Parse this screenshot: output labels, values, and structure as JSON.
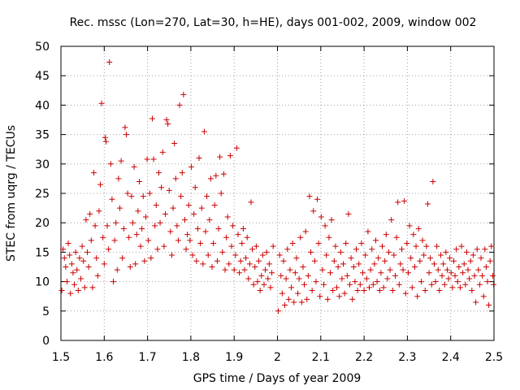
{
  "chart_data": {
    "type": "scatter",
    "title": "Rec. mssc (Lon=270, Lat=30, h=HE), days 001-002, 2009, window 002",
    "xlabel": "GPS time / Days of year 2009",
    "ylabel": "STEC from uqrg / TECUs",
    "xlim": [
      1.5,
      2.5
    ],
    "ylim": [
      0,
      50
    ],
    "xticks": [
      "1.5",
      "1.6",
      "1.7",
      "1.8",
      "1.9",
      "2",
      "2.1",
      "2.2",
      "2.3",
      "2.4",
      "2.5"
    ],
    "yticks": [
      "0",
      "5",
      "10",
      "15",
      "20",
      "25",
      "30",
      "35",
      "40",
      "45",
      "50"
    ],
    "grid": true,
    "marker": "plus",
    "color": "#cc0000",
    "points": [
      [
        1.502,
        8.5
      ],
      [
        1.505,
        15.5
      ],
      [
        1.508,
        14.0
      ],
      [
        1.511,
        12.5
      ],
      [
        1.514,
        10.0
      ],
      [
        1.517,
        16.5
      ],
      [
        1.52,
        14.5
      ],
      [
        1.522,
        8.0
      ],
      [
        1.525,
        13.0
      ],
      [
        1.528,
        11.5
      ],
      [
        1.531,
        9.5
      ],
      [
        1.534,
        15.0
      ],
      [
        1.537,
        12.0
      ],
      [
        1.54,
        8.5
      ],
      [
        1.543,
        14.0
      ],
      [
        1.546,
        10.5
      ],
      [
        1.549,
        16.0
      ],
      [
        1.552,
        13.5
      ],
      [
        1.555,
        9.0
      ],
      [
        1.558,
        20.5
      ],
      [
        1.561,
        15.0
      ],
      [
        1.564,
        12.5
      ],
      [
        1.567,
        21.5
      ],
      [
        1.57,
        17.0
      ],
      [
        1.573,
        9.0
      ],
      [
        1.576,
        28.5
      ],
      [
        1.579,
        19.5
      ],
      [
        1.582,
        14.0
      ],
      [
        1.585,
        11.0
      ],
      [
        1.588,
        22.0
      ],
      [
        1.591,
        26.5
      ],
      [
        1.594,
        40.3
      ],
      [
        1.597,
        17.5
      ],
      [
        1.6,
        13.0
      ],
      [
        1.602,
        34.5
      ],
      [
        1.604,
        33.8
      ],
      [
        1.607,
        19.5
      ],
      [
        1.61,
        15.5
      ],
      [
        1.612,
        47.3
      ],
      [
        1.615,
        30.0
      ],
      [
        1.618,
        24.0
      ],
      [
        1.621,
        10.0
      ],
      [
        1.624,
        17.0
      ],
      [
        1.627,
        20.0
      ],
      [
        1.63,
        12.0
      ],
      [
        1.633,
        27.5
      ],
      [
        1.636,
        22.5
      ],
      [
        1.639,
        30.5
      ],
      [
        1.642,
        14.0
      ],
      [
        1.645,
        19.0
      ],
      [
        1.648,
        36.2
      ],
      [
        1.651,
        35.0
      ],
      [
        1.654,
        25.0
      ],
      [
        1.657,
        17.5
      ],
      [
        1.66,
        12.5
      ],
      [
        1.663,
        24.5
      ],
      [
        1.666,
        20.0
      ],
      [
        1.669,
        29.5
      ],
      [
        1.672,
        13.0
      ],
      [
        1.675,
        18.0
      ],
      [
        1.678,
        22.0
      ],
      [
        1.681,
        27.0
      ],
      [
        1.684,
        16.0
      ],
      [
        1.687,
        19.0
      ],
      [
        1.69,
        24.5
      ],
      [
        1.693,
        13.5
      ],
      [
        1.696,
        21.0
      ],
      [
        1.699,
        30.8
      ],
      [
        1.702,
        17.0
      ],
      [
        1.705,
        25.0
      ],
      [
        1.708,
        14.0
      ],
      [
        1.711,
        37.7
      ],
      [
        1.714,
        30.8
      ],
      [
        1.717,
        19.5
      ],
      [
        1.72,
        23.0
      ],
      [
        1.723,
        15.5
      ],
      [
        1.726,
        28.5
      ],
      [
        1.729,
        20.0
      ],
      [
        1.732,
        26.0
      ],
      [
        1.735,
        32.0
      ],
      [
        1.738,
        16.0
      ],
      [
        1.741,
        21.5
      ],
      [
        1.744,
        37.5
      ],
      [
        1.747,
        36.8
      ],
      [
        1.75,
        25.5
      ],
      [
        1.753,
        18.5
      ],
      [
        1.756,
        14.5
      ],
      [
        1.759,
        22.5
      ],
      [
        1.762,
        33.5
      ],
      [
        1.765,
        27.5
      ],
      [
        1.768,
        19.5
      ],
      [
        1.771,
        17.0
      ],
      [
        1.774,
        40.0
      ],
      [
        1.777,
        24.5
      ],
      [
        1.78,
        28.5
      ],
      [
        1.783,
        41.8
      ],
      [
        1.786,
        20.5
      ],
      [
        1.789,
        15.5
      ],
      [
        1.792,
        18.0
      ],
      [
        1.795,
        23.0
      ],
      [
        1.798,
        17.0
      ],
      [
        1.801,
        29.5
      ],
      [
        1.804,
        14.5
      ],
      [
        1.807,
        21.5
      ],
      [
        1.81,
        26.0
      ],
      [
        1.813,
        13.5
      ],
      [
        1.816,
        19.0
      ],
      [
        1.819,
        31.0
      ],
      [
        1.822,
        16.5
      ],
      [
        1.825,
        22.5
      ],
      [
        1.828,
        13.0
      ],
      [
        1.831,
        35.5
      ],
      [
        1.834,
        18.5
      ],
      [
        1.837,
        24.5
      ],
      [
        1.84,
        14.5
      ],
      [
        1.843,
        20.5
      ],
      [
        1.846,
        27.5
      ],
      [
        1.849,
        12.5
      ],
      [
        1.852,
        16.5
      ],
      [
        1.855,
        23.0
      ],
      [
        1.858,
        28.0
      ],
      [
        1.861,
        13.5
      ],
      [
        1.864,
        19.0
      ],
      [
        1.867,
        31.2
      ],
      [
        1.87,
        25.0
      ],
      [
        1.873,
        15.0
      ],
      [
        1.876,
        28.3
      ],
      [
        1.879,
        12.0
      ],
      [
        1.882,
        17.5
      ],
      [
        1.885,
        21.0
      ],
      [
        1.888,
        13.0
      ],
      [
        1.891,
        31.4
      ],
      [
        1.894,
        16.0
      ],
      [
        1.897,
        19.5
      ],
      [
        1.9,
        12.0
      ],
      [
        1.903,
        14.5
      ],
      [
        1.906,
        32.7
      ],
      [
        1.909,
        18.0
      ],
      [
        1.912,
        11.5
      ],
      [
        1.915,
        13.5
      ],
      [
        1.918,
        16.5
      ],
      [
        1.921,
        19.0
      ],
      [
        1.924,
        12.0
      ],
      [
        1.927,
        14.0
      ],
      [
        1.93,
        17.5
      ],
      [
        1.933,
        10.5
      ],
      [
        1.936,
        13.0
      ],
      [
        1.939,
        23.5
      ],
      [
        1.942,
        15.5
      ],
      [
        1.945,
        9.5
      ],
      [
        1.948,
        12.5
      ],
      [
        1.951,
        16.0
      ],
      [
        1.954,
        10.0
      ],
      [
        1.957,
        13.5
      ],
      [
        1.96,
        8.5
      ],
      [
        1.963,
        11.0
      ],
      [
        1.966,
        14.5
      ],
      [
        1.969,
        9.5
      ],
      [
        1.972,
        12.0
      ],
      [
        1.975,
        15.0
      ],
      [
        1.978,
        10.5
      ],
      [
        1.981,
        13.0
      ],
      [
        1.984,
        9.0
      ],
      [
        1.987,
        11.5
      ],
      [
        1.99,
        16.0
      ],
      [
        2.002,
        5.0
      ],
      [
        2.005,
        14.5
      ],
      [
        2.008,
        11.0
      ],
      [
        2.011,
        8.0
      ],
      [
        2.014,
        13.5
      ],
      [
        2.017,
        6.0
      ],
      [
        2.02,
        10.5
      ],
      [
        2.023,
        15.5
      ],
      [
        2.026,
        7.0
      ],
      [
        2.029,
        12.0
      ],
      [
        2.032,
        9.0
      ],
      [
        2.035,
        16.5
      ],
      [
        2.038,
        6.5
      ],
      [
        2.041,
        11.5
      ],
      [
        2.044,
        14.0
      ],
      [
        2.047,
        8.0
      ],
      [
        2.05,
        10.5
      ],
      [
        2.053,
        17.5
      ],
      [
        2.056,
        6.5
      ],
      [
        2.059,
        12.5
      ],
      [
        2.062,
        9.5
      ],
      [
        2.065,
        18.5
      ],
      [
        2.068,
        7.0
      ],
      [
        2.071,
        11.0
      ],
      [
        2.074,
        24.5
      ],
      [
        2.077,
        15.0
      ],
      [
        2.08,
        8.5
      ],
      [
        2.083,
        22.0
      ],
      [
        2.086,
        13.5
      ],
      [
        2.089,
        10.0
      ],
      [
        2.092,
        24.0
      ],
      [
        2.095,
        16.5
      ],
      [
        2.098,
        7.5
      ],
      [
        2.101,
        21.0
      ],
      [
        2.104,
        12.0
      ],
      [
        2.107,
        9.5
      ],
      [
        2.11,
        19.5
      ],
      [
        2.113,
        14.5
      ],
      [
        2.116,
        7.0
      ],
      [
        2.119,
        17.5
      ],
      [
        2.122,
        11.5
      ],
      [
        2.125,
        20.5
      ],
      [
        2.128,
        8.5
      ],
      [
        2.131,
        13.5
      ],
      [
        2.134,
        16.0
      ],
      [
        2.137,
        9.0
      ],
      [
        2.14,
        12.5
      ],
      [
        2.143,
        7.5
      ],
      [
        2.146,
        15.0
      ],
      [
        2.149,
        10.5
      ],
      [
        2.152,
        13.0
      ],
      [
        2.155,
        8.0
      ],
      [
        2.158,
        16.5
      ],
      [
        2.161,
        11.0
      ],
      [
        2.164,
        21.5
      ],
      [
        2.167,
        9.5
      ],
      [
        2.17,
        14.0
      ],
      [
        2.173,
        7.0
      ],
      [
        2.176,
        12.5
      ],
      [
        2.179,
        10.0
      ],
      [
        2.182,
        15.5
      ],
      [
        2.185,
        8.5
      ],
      [
        2.188,
        13.0
      ],
      [
        2.191,
        9.5
      ],
      [
        2.194,
        16.5
      ],
      [
        2.197,
        11.5
      ],
      [
        2.2,
        8.5
      ],
      [
        2.203,
        14.5
      ],
      [
        2.206,
        10.5
      ],
      [
        2.209,
        18.5
      ],
      [
        2.212,
        9.0
      ],
      [
        2.215,
        12.0
      ],
      [
        2.218,
        15.5
      ],
      [
        2.221,
        9.5
      ],
      [
        2.224,
        13.0
      ],
      [
        2.227,
        17.0
      ],
      [
        2.23,
        10.0
      ],
      [
        2.233,
        14.0
      ],
      [
        2.236,
        8.5
      ],
      [
        2.239,
        11.5
      ],
      [
        2.242,
        16.0
      ],
      [
        2.245,
        9.0
      ],
      [
        2.248,
        13.5
      ],
      [
        2.251,
        18.0
      ],
      [
        2.254,
        10.5
      ],
      [
        2.257,
        15.0
      ],
      [
        2.26,
        12.0
      ],
      [
        2.263,
        20.5
      ],
      [
        2.266,
        8.5
      ],
      [
        2.269,
        14.5
      ],
      [
        2.272,
        11.0
      ],
      [
        2.275,
        17.5
      ],
      [
        2.278,
        23.5
      ],
      [
        2.281,
        9.5
      ],
      [
        2.284,
        13.0
      ],
      [
        2.287,
        15.5
      ],
      [
        2.29,
        12.0
      ],
      [
        2.293,
        23.7
      ],
      [
        2.296,
        8.0
      ],
      [
        2.299,
        16.5
      ],
      [
        2.302,
        11.5
      ],
      [
        2.305,
        19.5
      ],
      [
        2.308,
        14.0
      ],
      [
        2.311,
        9.0
      ],
      [
        2.314,
        18.0
      ],
      [
        2.317,
        12.5
      ],
      [
        2.32,
        16.0
      ],
      [
        2.323,
        7.5
      ],
      [
        2.326,
        19.0
      ],
      [
        2.329,
        13.5
      ],
      [
        2.332,
        10.0
      ],
      [
        2.335,
        17.0
      ],
      [
        2.338,
        14.5
      ],
      [
        2.341,
        8.5
      ],
      [
        2.344,
        16.0
      ],
      [
        2.347,
        23.2
      ],
      [
        2.35,
        11.5
      ],
      [
        2.353,
        14.0
      ],
      [
        2.356,
        9.5
      ],
      [
        2.359,
        27.0
      ],
      [
        2.362,
        13.0
      ],
      [
        2.365,
        10.0
      ],
      [
        2.368,
        16.0
      ],
      [
        2.371,
        12.0
      ],
      [
        2.374,
        8.5
      ],
      [
        2.377,
        14.5
      ],
      [
        2.38,
        11.0
      ],
      [
        2.383,
        13.0
      ],
      [
        2.386,
        9.5
      ],
      [
        2.389,
        15.0
      ],
      [
        2.392,
        12.0
      ],
      [
        2.395,
        10.5
      ],
      [
        2.398,
        14.0
      ],
      [
        2.401,
        11.5
      ],
      [
        2.404,
        9.0
      ],
      [
        2.407,
        13.5
      ],
      [
        2.41,
        11.0
      ],
      [
        2.413,
        15.5
      ],
      [
        2.416,
        10.0
      ],
      [
        2.419,
        12.5
      ],
      [
        2.422,
        9.0
      ],
      [
        2.425,
        16.0
      ],
      [
        2.428,
        11.5
      ],
      [
        2.431,
        13.0
      ],
      [
        2.434,
        9.5
      ],
      [
        2.437,
        15.0
      ],
      [
        2.44,
        12.0
      ],
      [
        2.443,
        10.5
      ],
      [
        2.446,
        13.5
      ],
      [
        2.449,
        8.5
      ],
      [
        2.452,
        14.5
      ],
      [
        2.455,
        11.0
      ],
      [
        2.458,
        6.5
      ],
      [
        2.461,
        15.5
      ],
      [
        2.464,
        12.0
      ],
      [
        2.467,
        9.5
      ],
      [
        2.47,
        14.0
      ],
      [
        2.473,
        11.0
      ],
      [
        2.476,
        7.5
      ],
      [
        2.479,
        15.5
      ],
      [
        2.482,
        12.5
      ],
      [
        2.485,
        10.0
      ],
      [
        2.488,
        6.0
      ],
      [
        2.491,
        13.5
      ],
      [
        2.494,
        16.0
      ],
      [
        2.497,
        11.0
      ],
      [
        2.499,
        9.5
      ]
    ]
  }
}
